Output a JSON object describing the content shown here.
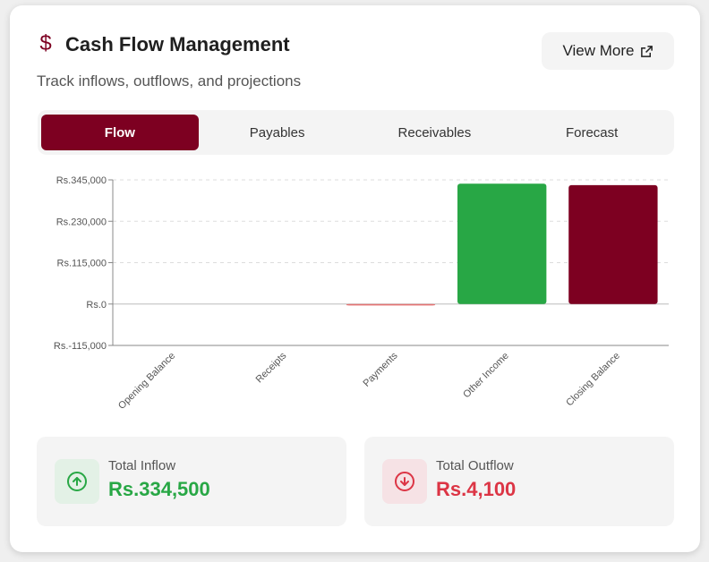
{
  "header": {
    "icon": "dollar-icon",
    "icon_glyph": "$",
    "title": "Cash Flow Management",
    "subtitle": "Track inflows, outflows, and projections",
    "view_more_label": "View More",
    "view_more_icon": "external-link-icon"
  },
  "tabs": [
    {
      "label": "Flow",
      "active": true
    },
    {
      "label": "Payables",
      "active": false
    },
    {
      "label": "Receivables",
      "active": false
    },
    {
      "label": "Forecast",
      "active": false
    }
  ],
  "colors": {
    "brand": "#7d0021",
    "inflow": "#28a745",
    "outflow": "#dc3545"
  },
  "chart_data": {
    "type": "bar",
    "categories": [
      "Opening Balance",
      "Receipts",
      "Payments",
      "Other Income",
      "Closing Balance"
    ],
    "values": [
      0,
      0,
      -4100,
      334500,
      330400
    ],
    "bar_colors": [
      "#7d0021",
      "#28a745",
      "#e57373",
      "#28a745",
      "#7d0021"
    ],
    "yticks": [
      -115000,
      0,
      115000,
      230000,
      345000
    ],
    "ytick_labels": [
      "Rs.-115,000",
      "Rs.0",
      "Rs.115,000",
      "Rs.230,000",
      "Rs.345,000"
    ],
    "ylim": [
      -115000,
      345000
    ],
    "grid": true
  },
  "stats": {
    "inflow": {
      "label": "Total Inflow",
      "value": "Rs.334,500",
      "icon": "arrow-up-circle-icon"
    },
    "outflow": {
      "label": "Total Outflow",
      "value": "Rs.4,100",
      "icon": "arrow-down-circle-icon"
    }
  }
}
